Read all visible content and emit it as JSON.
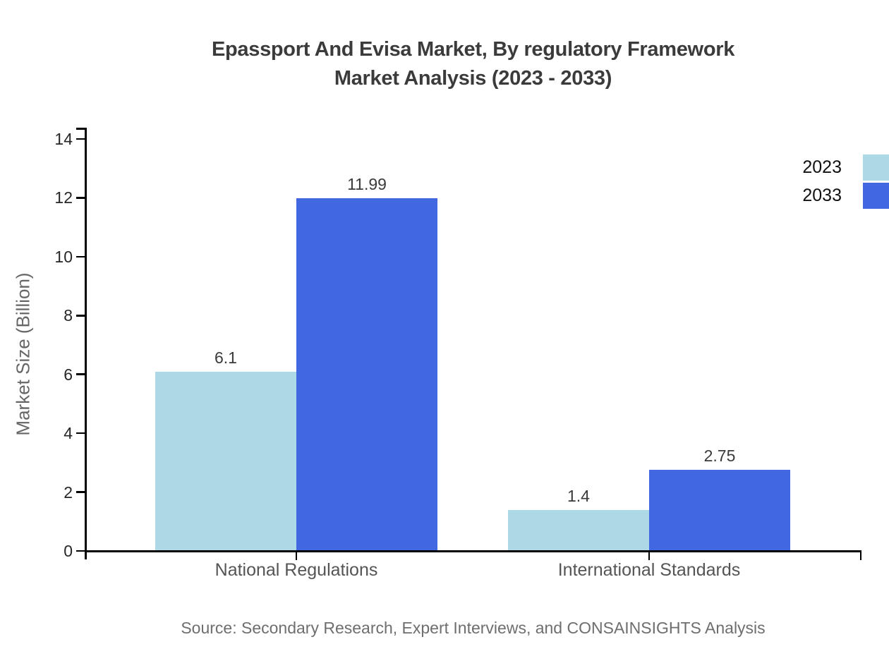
{
  "title": {
    "line1": "Epassport And Evisa Market, By regulatory Framework",
    "line2": "Market Analysis (2023 - 2033)"
  },
  "source": "Source: Secondary Research, Expert Interviews, and CONSAINSIGHTS Analysis",
  "colors": {
    "series_2023": "#ADD8E6",
    "series_2033": "#4168E0",
    "axis": "#000000",
    "title_text": "#3B3B3B",
    "value_label_text": "#3A3A3A",
    "category_text": "#555555",
    "tick_text": "#262626",
    "ylabel_text": "#666666",
    "source_text": "#6E6E6E"
  },
  "chart_data": {
    "type": "bar",
    "title": "Epassport And Evisa Market, By regulatory Framework Market Analysis (2023 - 2033)",
    "categories": [
      "National Regulations",
      "International Standards"
    ],
    "series": [
      {
        "name": "2023",
        "values": [
          6.1,
          1.4
        ],
        "color": "#ADD8E6"
      },
      {
        "name": "2033",
        "values": [
          11.99,
          2.75
        ],
        "color": "#4168E0"
      }
    ],
    "xlabel": "",
    "ylabel": "Market Size (Billion)",
    "ylim": [
      0,
      14.4
    ],
    "yticks": [
      0,
      2,
      4,
      6,
      8,
      10,
      12,
      14
    ],
    "grid": false,
    "legend_position": "top-right",
    "bar_value_labels_shown": true
  }
}
